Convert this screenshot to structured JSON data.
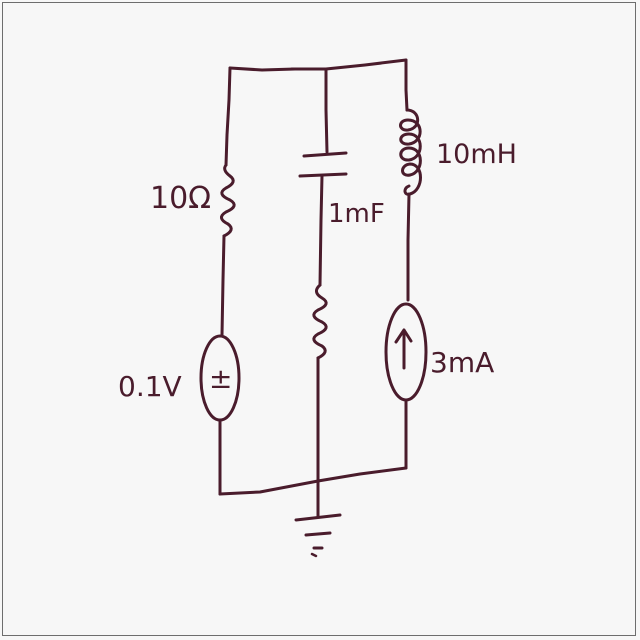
{
  "diagram": {
    "ink_color": "#4a1c2c",
    "background_color": "#f7f7f7",
    "components": {
      "resistor_left": {
        "label": "10Ω"
      },
      "capacitor": {
        "label": "1mF"
      },
      "inductor": {
        "label": "10mH"
      },
      "voltage_source": {
        "label": "0.1V",
        "symbol": "±"
      },
      "current_source": {
        "label": "3mA",
        "symbol": "↑"
      },
      "resistor_middle": {},
      "ground": {}
    }
  }
}
